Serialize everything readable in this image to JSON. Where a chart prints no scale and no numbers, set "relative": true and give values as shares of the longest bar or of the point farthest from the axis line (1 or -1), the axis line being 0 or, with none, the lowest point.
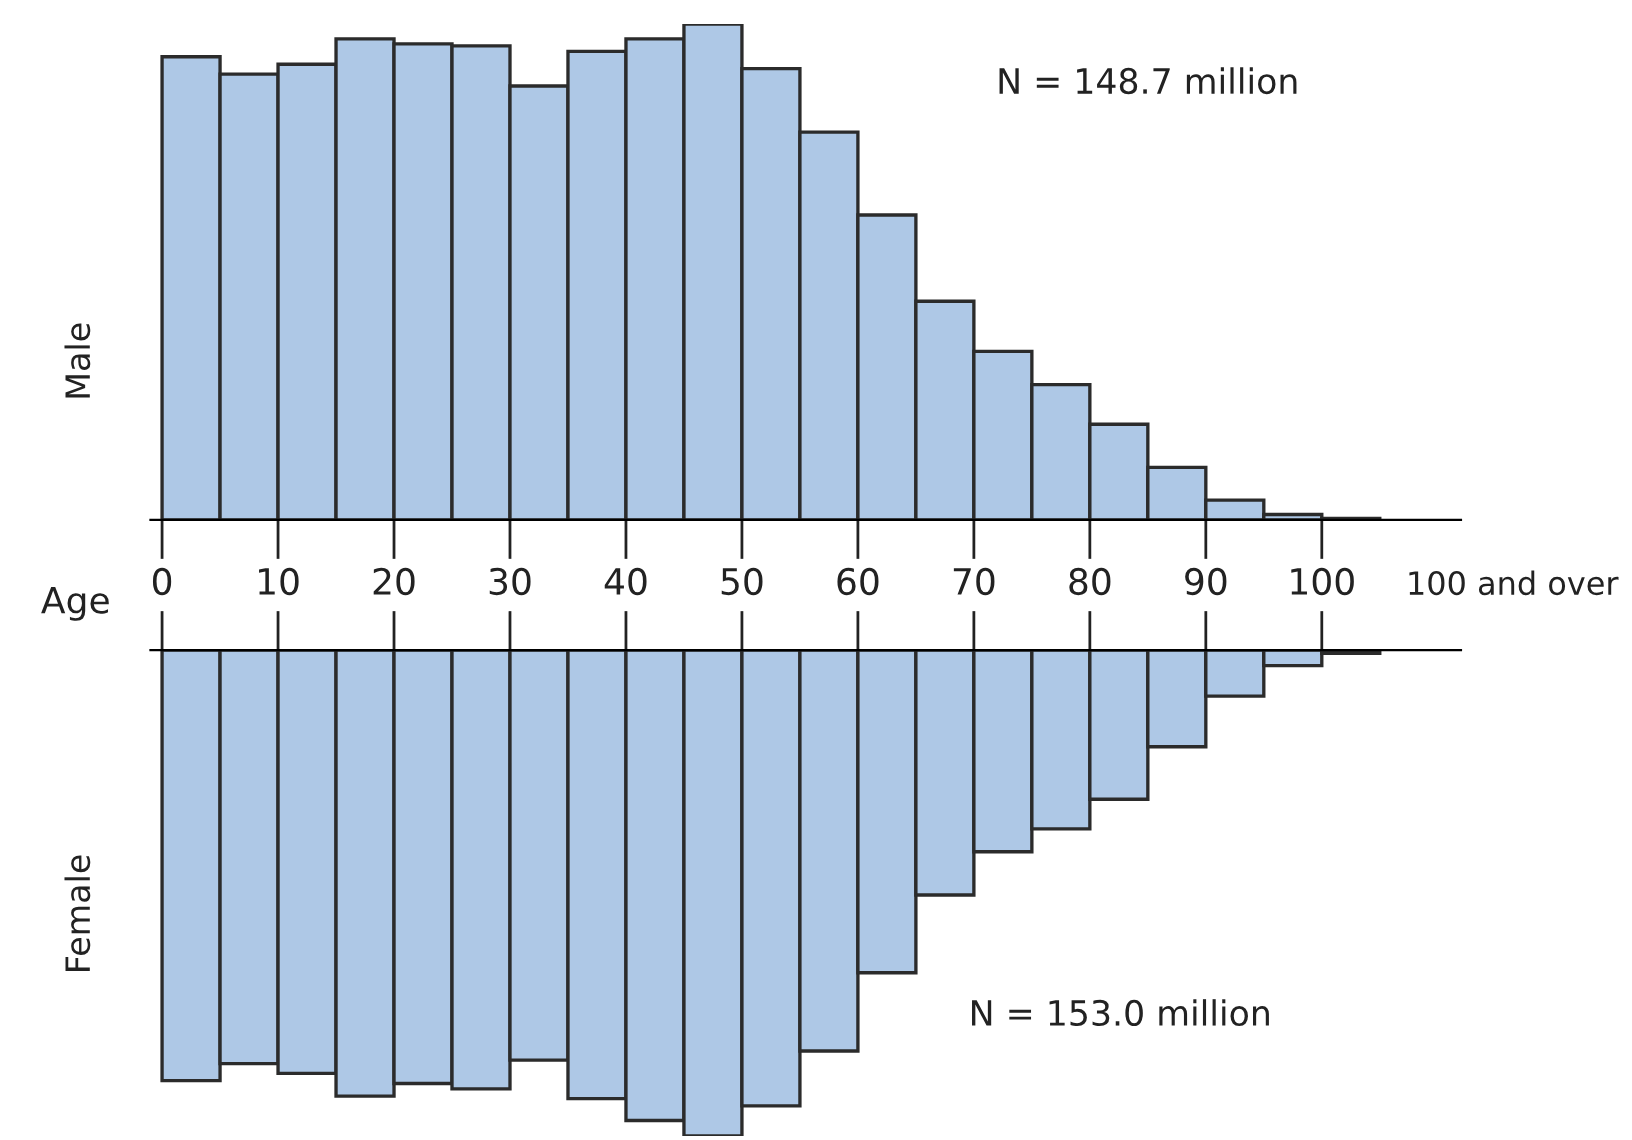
{
  "chart_data": [
    {
      "type": "bar",
      "relative": true,
      "ylabel": "Male",
      "xlabel": "Age",
      "color": "#aec8e6",
      "tick_labels": "x",
      "xlim": [
        -1,
        112
      ],
      "xticks": [
        0,
        10,
        20,
        30,
        40,
        50,
        60,
        70,
        80,
        90,
        100
      ],
      "annotations": [
        "N = 148.7 million",
        "100 and over"
      ],
      "x": [
        2.5,
        7.5,
        12.5,
        17.5,
        22.5,
        27.5,
        32.5,
        37.5,
        42.5,
        47.5,
        52.5,
        57.5,
        62.5,
        67.5,
        72.5,
        77.5,
        82.5,
        87.5,
        92.5,
        97.5,
        102.5
      ],
      "values": [
        0.934,
        0.899,
        0.919,
        0.97,
        0.96,
        0.956,
        0.875,
        0.945,
        0.97,
        1,
        0.91,
        0.782,
        0.615,
        0.441,
        0.34,
        0.273,
        0.193,
        0.106,
        0.04,
        0.011,
        0.003
      ]
    },
    {
      "type": "bar",
      "relative": true,
      "ylabel": "Female",
      "color": "#aec8e6",
      "tick_labels": false,
      "xlim": [
        -1,
        112
      ],
      "xticks": [
        0,
        10,
        20,
        30,
        40,
        50,
        60,
        70,
        80,
        90,
        100
      ],
      "annotations": [
        "N = 153.0 million"
      ],
      "x": [
        2.5,
        7.5,
        12.5,
        17.5,
        22.5,
        27.5,
        32.5,
        37.5,
        42.5,
        47.5,
        52.5,
        57.5,
        62.5,
        67.5,
        72.5,
        77.5,
        82.5,
        87.5,
        92.5,
        97.5,
        102.5
      ],
      "values": [
        -0.886,
        -0.851,
        -0.871,
        -0.918,
        -0.892,
        -0.903,
        -0.844,
        -0.923,
        -0.968,
        -1,
        -0.938,
        -0.825,
        -0.664,
        -0.504,
        -0.415,
        -0.368,
        -0.307,
        -0.199,
        -0.095,
        -0.032,
        -0.007
      ]
    }
  ]
}
